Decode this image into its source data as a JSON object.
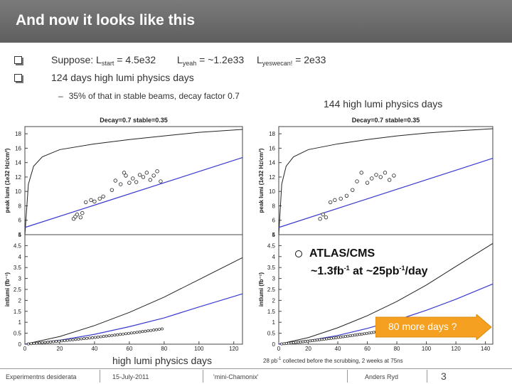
{
  "slide": {
    "title": "And now it looks like this",
    "bullet1": {
      "prefix": "Suppose: L",
      "start_sub": "start",
      "start_val": " = 4.5e32",
      "l2": "L",
      "yeah_sub": "yeah",
      "yeah_val": " = ~1.2e33",
      "l3": "L",
      "yes_sub": "yeswecan!",
      "yes_val": " = 2e33"
    },
    "bullet2": "124 days high lumi physics days",
    "sub_bullet_dash": "–",
    "sub_bullet": "35% of that in stable beams,  decay factor 0.7",
    "right_caption": "144 high lumi physics days",
    "atlas_line1": "ATLAS/CMS",
    "atlas_line2_a": "~1.3fb",
    "atlas_sup1": "-1",
    "atlas_line2_b": " at ~25pb",
    "atlas_sup2": "-1",
    "atlas_line2_c": "/day",
    "arrow_text": "80 more days ?",
    "left_caption": "high lumi physics days",
    "note_a": "28 pb",
    "note_sup": "-1",
    "note_b": " collected before the scrubbing,  2 weeks at 75ns"
  },
  "footer": {
    "left": "Experimentns desiderata",
    "date": "15-July-2011",
    "event": "'mini-Chamonix'",
    "author": "Anders Ryd",
    "page": "3"
  },
  "colors": {
    "title_bar": "#6b6b6b",
    "arrow": "#f5a020",
    "theory_curve": "#3a3ad0"
  },
  "chart_data": [
    {
      "type": "scatter",
      "title": "Decay=0.7  stable=0.35",
      "panels": [
        {
          "ylabel": "peak lumi (1e32 Hz/cm²)",
          "y_ticks": [
            "4",
            "6",
            "8",
            "10",
            "12",
            "14",
            "16",
            "18"
          ],
          "ylim": [
            4,
            19
          ]
        },
        {
          "ylabel": "intlumi (fb⁻¹)",
          "y_ticks": [
            "0",
            "0.5",
            "1",
            "1.5",
            "2",
            "2.5",
            "3",
            "3.5",
            "4",
            "4.5",
            "5"
          ],
          "ylim": [
            0,
            5
          ]
        }
      ],
      "xlabel": "",
      "x_ticks": [
        "0",
        "20",
        "40",
        "60",
        "80",
        "100",
        "120"
      ],
      "xlim": [
        0,
        125
      ],
      "peak_points": [
        {
          "x": 28,
          "y": 6.2
        },
        {
          "x": 29,
          "y": 6.5
        },
        {
          "x": 30,
          "y": 6.8
        },
        {
          "x": 32,
          "y": 6.4
        },
        {
          "x": 33,
          "y": 7.0
        },
        {
          "x": 35,
          "y": 8.5
        },
        {
          "x": 38,
          "y": 8.8
        },
        {
          "x": 40,
          "y": 8.6
        },
        {
          "x": 43,
          "y": 9.0
        },
        {
          "x": 45,
          "y": 9.3
        },
        {
          "x": 50,
          "y": 10.2
        },
        {
          "x": 52,
          "y": 11.5
        },
        {
          "x": 55,
          "y": 11.0
        },
        {
          "x": 57,
          "y": 12.6
        },
        {
          "x": 58,
          "y": 12.2
        },
        {
          "x": 60,
          "y": 11.2
        },
        {
          "x": 62,
          "y": 11.8
        },
        {
          "x": 64,
          "y": 11.3
        },
        {
          "x": 66,
          "y": 12.3
        },
        {
          "x": 68,
          "y": 12.0
        },
        {
          "x": 70,
          "y": 12.6
        },
        {
          "x": 72,
          "y": 11.6
        },
        {
          "x": 74,
          "y": 12.2
        },
        {
          "x": 76,
          "y": 12.8
        },
        {
          "x": 78,
          "y": 11.4
        }
      ],
      "peak_theory_line": {
        "x": [
          0,
          125
        ],
        "y": [
          5.0,
          14.7
        ]
      },
      "peak_black_curve": {
        "x": [
          0,
          2,
          5,
          10,
          20,
          40,
          60,
          80,
          100,
          125
        ],
        "y": [
          4,
          11,
          13.5,
          14.8,
          15.8,
          16.6,
          17.2,
          17.7,
          18.2,
          18.6
        ]
      },
      "int_black_curve": {
        "x": [
          0,
          20,
          40,
          60,
          80,
          100,
          125
        ],
        "y": [
          0,
          0.35,
          0.85,
          1.45,
          2.15,
          2.95,
          3.95
        ]
      },
      "int_blue_curve": {
        "x": [
          0,
          20,
          40,
          60,
          80,
          100,
          125
        ],
        "y": [
          0,
          0.18,
          0.45,
          0.8,
          1.2,
          1.7,
          2.3
        ]
      }
    },
    {
      "type": "scatter",
      "title": "Decay=0.7  stable=0.35",
      "panels": [
        {
          "ylabel": "peak lumi (1e32 Hz/cm²)",
          "y_ticks": [
            "4",
            "6",
            "8",
            "10",
            "12",
            "14",
            "16",
            "18"
          ],
          "ylim": [
            4,
            19
          ]
        },
        {
          "ylabel": "intlumi (fb⁻¹)",
          "y_ticks": [
            "0",
            "0.5",
            "1",
            "1.5",
            "2",
            "2.5",
            "3",
            "3.5",
            "4",
            "4.5",
            "5"
          ],
          "ylim": [
            0,
            5
          ]
        }
      ],
      "xlabel": "",
      "x_ticks": [
        "0",
        "20",
        "40",
        "60",
        "80",
        "100",
        "120",
        "140"
      ],
      "xlim": [
        0,
        145
      ],
      "peak_points": [
        {
          "x": 28,
          "y": 6.2
        },
        {
          "x": 30,
          "y": 6.8
        },
        {
          "x": 32,
          "y": 6.4
        },
        {
          "x": 35,
          "y": 8.5
        },
        {
          "x": 38,
          "y": 8.8
        },
        {
          "x": 42,
          "y": 9.0
        },
        {
          "x": 46,
          "y": 9.4
        },
        {
          "x": 50,
          "y": 10.2
        },
        {
          "x": 53,
          "y": 11.4
        },
        {
          "x": 56,
          "y": 12.6
        },
        {
          "x": 60,
          "y": 11.2
        },
        {
          "x": 63,
          "y": 11.8
        },
        {
          "x": 66,
          "y": 12.3
        },
        {
          "x": 69,
          "y": 12.0
        },
        {
          "x": 72,
          "y": 12.6
        },
        {
          "x": 75,
          "y": 11.6
        },
        {
          "x": 78,
          "y": 12.2
        }
      ],
      "peak_theory_line": {
        "x": [
          0,
          145
        ],
        "y": [
          5.0,
          14.6
        ]
      },
      "peak_black_curve": {
        "x": [
          0,
          2,
          5,
          10,
          20,
          40,
          60,
          80,
          100,
          120,
          145
        ],
        "y": [
          4,
          11,
          13.5,
          14.8,
          15.8,
          16.6,
          17.2,
          17.7,
          18.1,
          18.4,
          18.7
        ]
      },
      "int_black_curve": {
        "x": [
          0,
          20,
          40,
          60,
          80,
          100,
          120,
          145
        ],
        "y": [
          0,
          0.3,
          0.75,
          1.3,
          1.95,
          2.7,
          3.55,
          4.6
        ]
      },
      "int_blue_curve": {
        "x": [
          0,
          20,
          40,
          60,
          80,
          100,
          120,
          145
        ],
        "y": [
          0,
          0.16,
          0.4,
          0.72,
          1.1,
          1.55,
          2.05,
          2.75
        ]
      }
    }
  ]
}
